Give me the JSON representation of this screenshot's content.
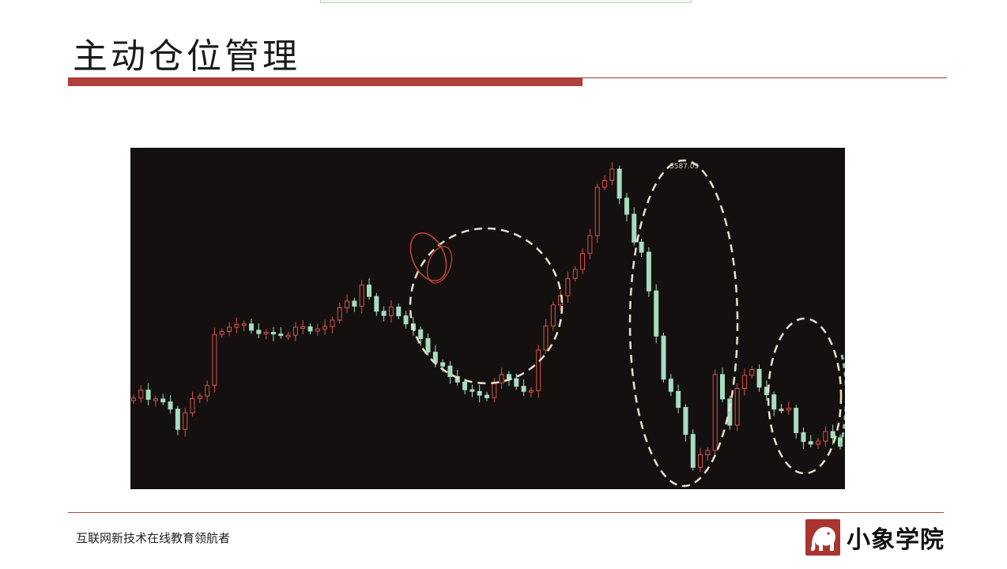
{
  "slide": {
    "title": "主动仓位管理",
    "footer_text": "互联网新技术在线教育领航者",
    "brand_name": "小象学院",
    "brand_icon": "elephant-logo-icon",
    "colors": {
      "accent": "#b0403b",
      "chart_background": "#141010",
      "up_candle": "#d9534a",
      "down_candle": "#a8dcc0",
      "highlight_circle": "#e8e2cc",
      "hand_circle": "#c8453c"
    }
  },
  "chart": {
    "peak_label": "3587.03"
  },
  "chart_data": {
    "type": "candlestick",
    "title": "",
    "xlabel": "",
    "ylabel": "",
    "peak_value": 3587.03,
    "series": [
      {
        "values": [
          3044,
          3063,
          3041,
          3042,
          3035,
          3018,
          2970,
          3009,
          3043,
          3049,
          3074,
          3195,
          3202,
          3212,
          3219,
          3220,
          3205,
          3197,
          3200,
          3196,
          3193,
          3193,
          3212,
          3213,
          3203,
          3208,
          3214,
          3229,
          3258,
          3274,
          3262,
          3312,
          3285,
          3250,
          3240,
          3260,
          3239,
          3220,
          3206,
          3185,
          3153,
          3128,
          3120,
          3095,
          3082,
          3064,
          3060,
          3051,
          3045,
          3080,
          3100,
          3090,
          3072,
          3060,
          3062,
          3158,
          3215,
          3265,
          3287,
          3328,
          3349,
          3387,
          3429,
          3544,
          3560,
          3587,
          3518,
          3480,
          3414,
          3390,
          3298,
          3191,
          3089,
          3060,
          3022,
          2958,
          2880,
          2910,
          2920,
          3100,
          3042,
          2980,
          3067,
          3098,
          3112,
          3070,
          3052,
          3018,
          3016,
          3020,
          2962,
          2941,
          2935,
          2942,
          2965,
          2950,
          2930
        ]
      }
    ]
  }
}
